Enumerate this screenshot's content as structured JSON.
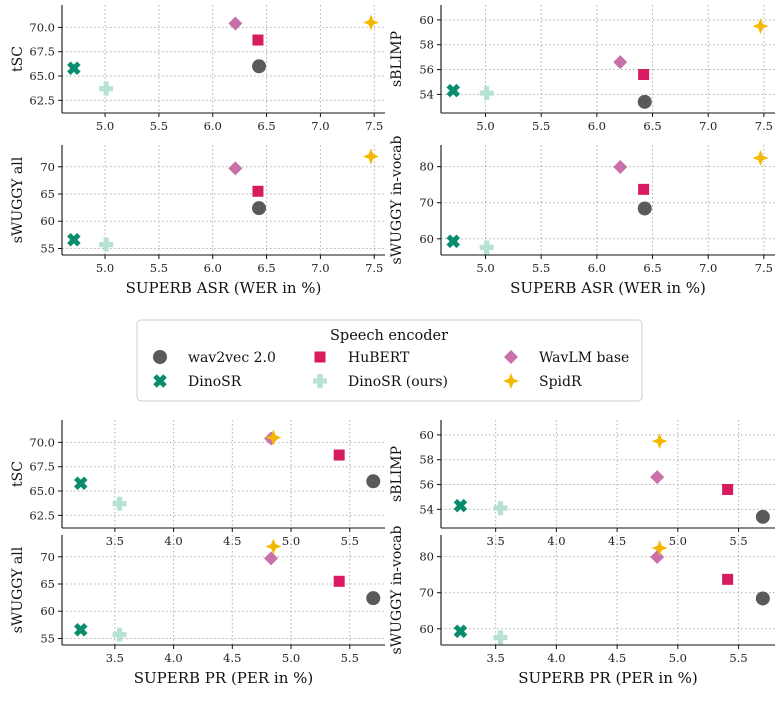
{
  "colors": {
    "wav2vec 2.0": "#5a5a5a",
    "DinoSR": "#0a8c6e",
    "HuBERT": "#d81b60",
    "DinoSR (ours)": "#b6e2d5",
    "WavLM base": "#c870aa",
    "SpidR": "#f5b800"
  },
  "legend": {
    "title": "Speech encoder",
    "entries": [
      {
        "name": "wav2vec 2.0",
        "marker": "circle"
      },
      {
        "name": "HuBERT",
        "marker": "square"
      },
      {
        "name": "WavLM base",
        "marker": "diamond"
      },
      {
        "name": "DinoSR",
        "marker": "x"
      },
      {
        "name": "DinoSR (ours)",
        "marker": "plus"
      },
      {
        "name": "SpidR",
        "marker": "star"
      }
    ]
  },
  "x_axes": {
    "asr": {
      "label": "SUPERB ASR (WER in %)",
      "range": [
        4.6,
        7.6
      ],
      "ticks": [
        "5.0",
        "5.5",
        "6.0",
        "6.5",
        "7.0",
        "7.5"
      ]
    },
    "pr": {
      "label": "SUPERB PR (PER in %)",
      "range": [
        3.05,
        5.8
      ],
      "ticks": [
        "3.5",
        "4.0",
        "4.5",
        "5.0",
        "5.5"
      ]
    }
  },
  "x_values": {
    "asr": {
      "wav2vec 2.0": 6.43,
      "HuBERT": 6.42,
      "WavLM base": 6.21,
      "DinoSR": 4.71,
      "DinoSR (ours)": 5.01,
      "SpidR": 7.47
    },
    "pr": {
      "wav2vec 2.0": 5.7,
      "HuBERT": 5.41,
      "WavLM base": 4.83,
      "DinoSR": 3.21,
      "DinoSR (ours)": 3.54,
      "SpidR": 4.85
    }
  },
  "metrics": [
    {
      "key": "tsc",
      "label": "tSC",
      "range": [
        61.2,
        72.3
      ],
      "ticks": [
        "62.5",
        "65.0",
        "67.5",
        "70.0"
      ],
      "values": {
        "wav2vec 2.0": 66.0,
        "HuBERT": 68.7,
        "WavLM base": 70.4,
        "DinoSR": 65.8,
        "DinoSR (ours)": 63.7,
        "SpidR": 70.5
      }
    },
    {
      "key": "sblimp",
      "label": "sBLIMP",
      "range": [
        52.5,
        61.2
      ],
      "ticks": [
        "54",
        "56",
        "58",
        "60"
      ],
      "values": {
        "wav2vec 2.0": 53.4,
        "HuBERT": 55.6,
        "WavLM base": 56.6,
        "DinoSR": 54.3,
        "DinoSR (ours)": 54.1,
        "SpidR": 59.5
      }
    },
    {
      "key": "swuggy_all",
      "label": "sWUGGY all",
      "range": [
        53.8,
        74.0
      ],
      "ticks": [
        "55",
        "60",
        "65",
        "70"
      ],
      "values": {
        "wav2vec 2.0": 62.4,
        "HuBERT": 65.5,
        "WavLM base": 69.7,
        "DinoSR": 56.6,
        "DinoSR (ours)": 55.7,
        "SpidR": 71.9
      }
    },
    {
      "key": "swuggy_iv",
      "label": "sWUGGY in-vocab",
      "range": [
        55.5,
        86.0
      ],
      "ticks": [
        "60",
        "70",
        "80"
      ],
      "values": {
        "wav2vec 2.0": 68.4,
        "HuBERT": 73.7,
        "WavLM base": 79.9,
        "DinoSR": 59.3,
        "DinoSR (ours)": 57.6,
        "SpidR": 82.4
      }
    }
  ],
  "chart_data": [
    {
      "type": "scatter",
      "title": "",
      "xlabel": "",
      "ylabel": "tSC",
      "xlim": [
        4.6,
        7.6
      ],
      "ylim": [
        61.2,
        72.3
      ],
      "series": [
        {
          "name": "wav2vec 2.0",
          "x": [
            6.43
          ],
          "y": [
            66.0
          ]
        },
        {
          "name": "HuBERT",
          "x": [
            6.42
          ],
          "y": [
            68.7
          ]
        },
        {
          "name": "WavLM base",
          "x": [
            6.21
          ],
          "y": [
            70.4
          ]
        },
        {
          "name": "DinoSR",
          "x": [
            4.71
          ],
          "y": [
            65.8
          ]
        },
        {
          "name": "DinoSR (ours)",
          "x": [
            5.01
          ],
          "y": [
            63.7
          ]
        },
        {
          "name": "SpidR",
          "x": [
            7.47
          ],
          "y": [
            70.5
          ]
        }
      ]
    },
    {
      "type": "scatter",
      "title": "",
      "xlabel": "",
      "ylabel": "sBLIMP",
      "xlim": [
        4.6,
        7.6
      ],
      "ylim": [
        52.5,
        61.2
      ],
      "series": [
        {
          "name": "wav2vec 2.0",
          "x": [
            6.43
          ],
          "y": [
            53.4
          ]
        },
        {
          "name": "HuBERT",
          "x": [
            6.42
          ],
          "y": [
            55.6
          ]
        },
        {
          "name": "WavLM base",
          "x": [
            6.21
          ],
          "y": [
            56.6
          ]
        },
        {
          "name": "DinoSR",
          "x": [
            4.71
          ],
          "y": [
            54.3
          ]
        },
        {
          "name": "DinoSR (ours)",
          "x": [
            5.01
          ],
          "y": [
            54.1
          ]
        },
        {
          "name": "SpidR",
          "x": [
            7.47
          ],
          "y": [
            59.5
          ]
        }
      ]
    },
    {
      "type": "scatter",
      "title": "",
      "xlabel": "SUPERB ASR (WER in %)",
      "ylabel": "sWUGGY all",
      "xlim": [
        4.6,
        7.6
      ],
      "ylim": [
        53.8,
        74.0
      ],
      "series": [
        {
          "name": "wav2vec 2.0",
          "x": [
            6.43
          ],
          "y": [
            62.4
          ]
        },
        {
          "name": "HuBERT",
          "x": [
            6.42
          ],
          "y": [
            65.5
          ]
        },
        {
          "name": "WavLM base",
          "x": [
            6.21
          ],
          "y": [
            69.7
          ]
        },
        {
          "name": "DinoSR",
          "x": [
            4.71
          ],
          "y": [
            56.6
          ]
        },
        {
          "name": "DinoSR (ours)",
          "x": [
            5.01
          ],
          "y": [
            55.7
          ]
        },
        {
          "name": "SpidR",
          "x": [
            7.47
          ],
          "y": [
            71.9
          ]
        }
      ]
    },
    {
      "type": "scatter",
      "title": "",
      "xlabel": "SUPERB ASR (WER in %)",
      "ylabel": "sWUGGY in-vocab",
      "xlim": [
        4.6,
        7.6
      ],
      "ylim": [
        55.5,
        86.0
      ],
      "series": [
        {
          "name": "wav2vec 2.0",
          "x": [
            6.43
          ],
          "y": [
            68.4
          ]
        },
        {
          "name": "HuBERT",
          "x": [
            6.42
          ],
          "y": [
            73.7
          ]
        },
        {
          "name": "WavLM base",
          "x": [
            6.21
          ],
          "y": [
            79.9
          ]
        },
        {
          "name": "DinoSR",
          "x": [
            4.71
          ],
          "y": [
            59.3
          ]
        },
        {
          "name": "DinoSR (ours)",
          "x": [
            5.01
          ],
          "y": [
            57.6
          ]
        },
        {
          "name": "SpidR",
          "x": [
            7.47
          ],
          "y": [
            82.4
          ]
        }
      ]
    },
    {
      "type": "scatter",
      "title": "",
      "xlabel": "",
      "ylabel": "tSC",
      "xlim": [
        3.05,
        5.8
      ],
      "ylim": [
        61.2,
        72.3
      ],
      "series": [
        {
          "name": "wav2vec 2.0",
          "x": [
            5.7
          ],
          "y": [
            66.0
          ]
        },
        {
          "name": "HuBERT",
          "x": [
            5.41
          ],
          "y": [
            68.7
          ]
        },
        {
          "name": "WavLM base",
          "x": [
            4.83
          ],
          "y": [
            70.4
          ]
        },
        {
          "name": "DinoSR",
          "x": [
            3.21
          ],
          "y": [
            65.8
          ]
        },
        {
          "name": "DinoSR (ours)",
          "x": [
            3.54
          ],
          "y": [
            63.7
          ]
        },
        {
          "name": "SpidR",
          "x": [
            4.85
          ],
          "y": [
            70.5
          ]
        }
      ]
    },
    {
      "type": "scatter",
      "title": "",
      "xlabel": "",
      "ylabel": "sBLIMP",
      "xlim": [
        3.05,
        5.8
      ],
      "ylim": [
        52.5,
        61.2
      ],
      "series": [
        {
          "name": "wav2vec 2.0",
          "x": [
            5.7
          ],
          "y": [
            53.4
          ]
        },
        {
          "name": "HuBERT",
          "x": [
            5.41
          ],
          "y": [
            55.6
          ]
        },
        {
          "name": "WavLM base",
          "x": [
            4.83
          ],
          "y": [
            56.6
          ]
        },
        {
          "name": "DinoSR",
          "x": [
            3.21
          ],
          "y": [
            54.3
          ]
        },
        {
          "name": "DinoSR (ours)",
          "x": [
            3.54
          ],
          "y": [
            54.1
          ]
        },
        {
          "name": "SpidR",
          "x": [
            4.85
          ],
          "y": [
            59.5
          ]
        }
      ]
    },
    {
      "type": "scatter",
      "title": "",
      "xlabel": "SUPERB PR (PER in %)",
      "ylabel": "sWUGGY all",
      "xlim": [
        3.05,
        5.8
      ],
      "ylim": [
        53.8,
        74.0
      ],
      "series": [
        {
          "name": "wav2vec 2.0",
          "x": [
            5.7
          ],
          "y": [
            62.4
          ]
        },
        {
          "name": "HuBERT",
          "x": [
            5.41
          ],
          "y": [
            65.5
          ]
        },
        {
          "name": "WavLM base",
          "x": [
            4.83
          ],
          "y": [
            69.7
          ]
        },
        {
          "name": "DinoSR",
          "x": [
            3.21
          ],
          "y": [
            56.6
          ]
        },
        {
          "name": "DinoSR (ours)",
          "x": [
            3.54
          ],
          "y": [
            55.7
          ]
        },
        {
          "name": "SpidR",
          "x": [
            4.85
          ],
          "y": [
            71.9
          ]
        }
      ]
    },
    {
      "type": "scatter",
      "title": "",
      "xlabel": "SUPERB PR (PER in %)",
      "ylabel": "sWUGGY in-vocab",
      "xlim": [
        3.05,
        5.8
      ],
      "ylim": [
        55.5,
        86.0
      ],
      "series": [
        {
          "name": "wav2vec 2.0",
          "x": [
            5.7
          ],
          "y": [
            68.4
          ]
        },
        {
          "name": "HuBERT",
          "x": [
            5.41
          ],
          "y": [
            73.7
          ]
        },
        {
          "name": "WavLM base",
          "x": [
            4.83
          ],
          "y": [
            79.9
          ]
        },
        {
          "name": "DinoSR",
          "x": [
            3.21
          ],
          "y": [
            59.3
          ]
        },
        {
          "name": "DinoSR (ours)",
          "x": [
            3.54
          ],
          "y": [
            57.6
          ]
        },
        {
          "name": "SpidR",
          "x": [
            4.85
          ],
          "y": [
            82.4
          ]
        }
      ]
    }
  ]
}
